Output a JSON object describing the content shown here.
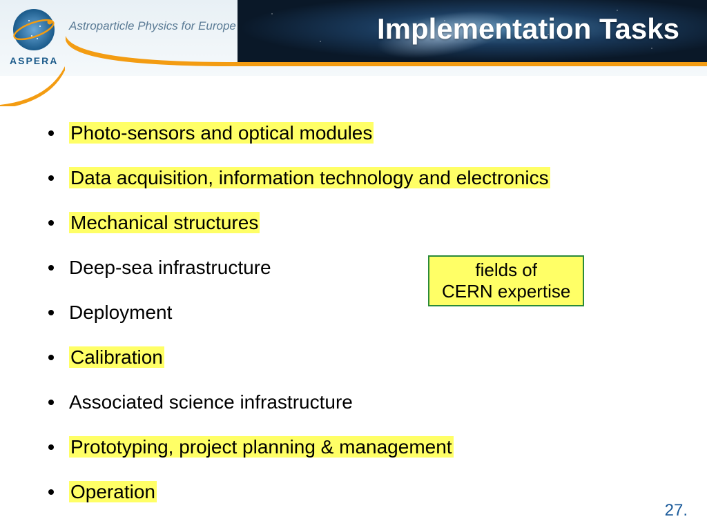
{
  "header": {
    "title": "Implementation Tasks",
    "logo_text": "ASPERA",
    "tagline": "Astroparticle Physics for Europe",
    "colors": {
      "cosmos_dark": "#0a1828",
      "cosmos_mid": "#1a3a5c",
      "orange": "#f39c12",
      "logo_blue": "#1a5a8a",
      "tagline_color": "#5a7a95"
    }
  },
  "bullets": [
    {
      "text": "Photo-sensors and optical modules",
      "highlight": true
    },
    {
      "text": "Data acquisition, information technology and electronics",
      "highlight": true
    },
    {
      "text": "Mechanical structures",
      "highlight": true
    },
    {
      "text": "Deep-sea infrastructure",
      "highlight": false
    },
    {
      "text": "Deployment",
      "highlight": false
    },
    {
      "text": "Calibration",
      "highlight": true
    },
    {
      "text": "Associated science infrastructure",
      "highlight": false
    },
    {
      "text": "Prototyping, project planning & management",
      "highlight": true
    },
    {
      "text": "Operation",
      "highlight": true
    }
  ],
  "callout": {
    "line1": "fields of",
    "line2": "CERN expertise",
    "border_color": "#2a8a3a",
    "background": "#ffff66"
  },
  "highlight_color": "#ffff66",
  "page_number": "27.",
  "typography": {
    "title_fontsize": 42,
    "bullet_fontsize": 28,
    "callout_fontsize": 26,
    "pagenum_fontsize": 24,
    "pagenum_color": "#1a5a9a"
  }
}
